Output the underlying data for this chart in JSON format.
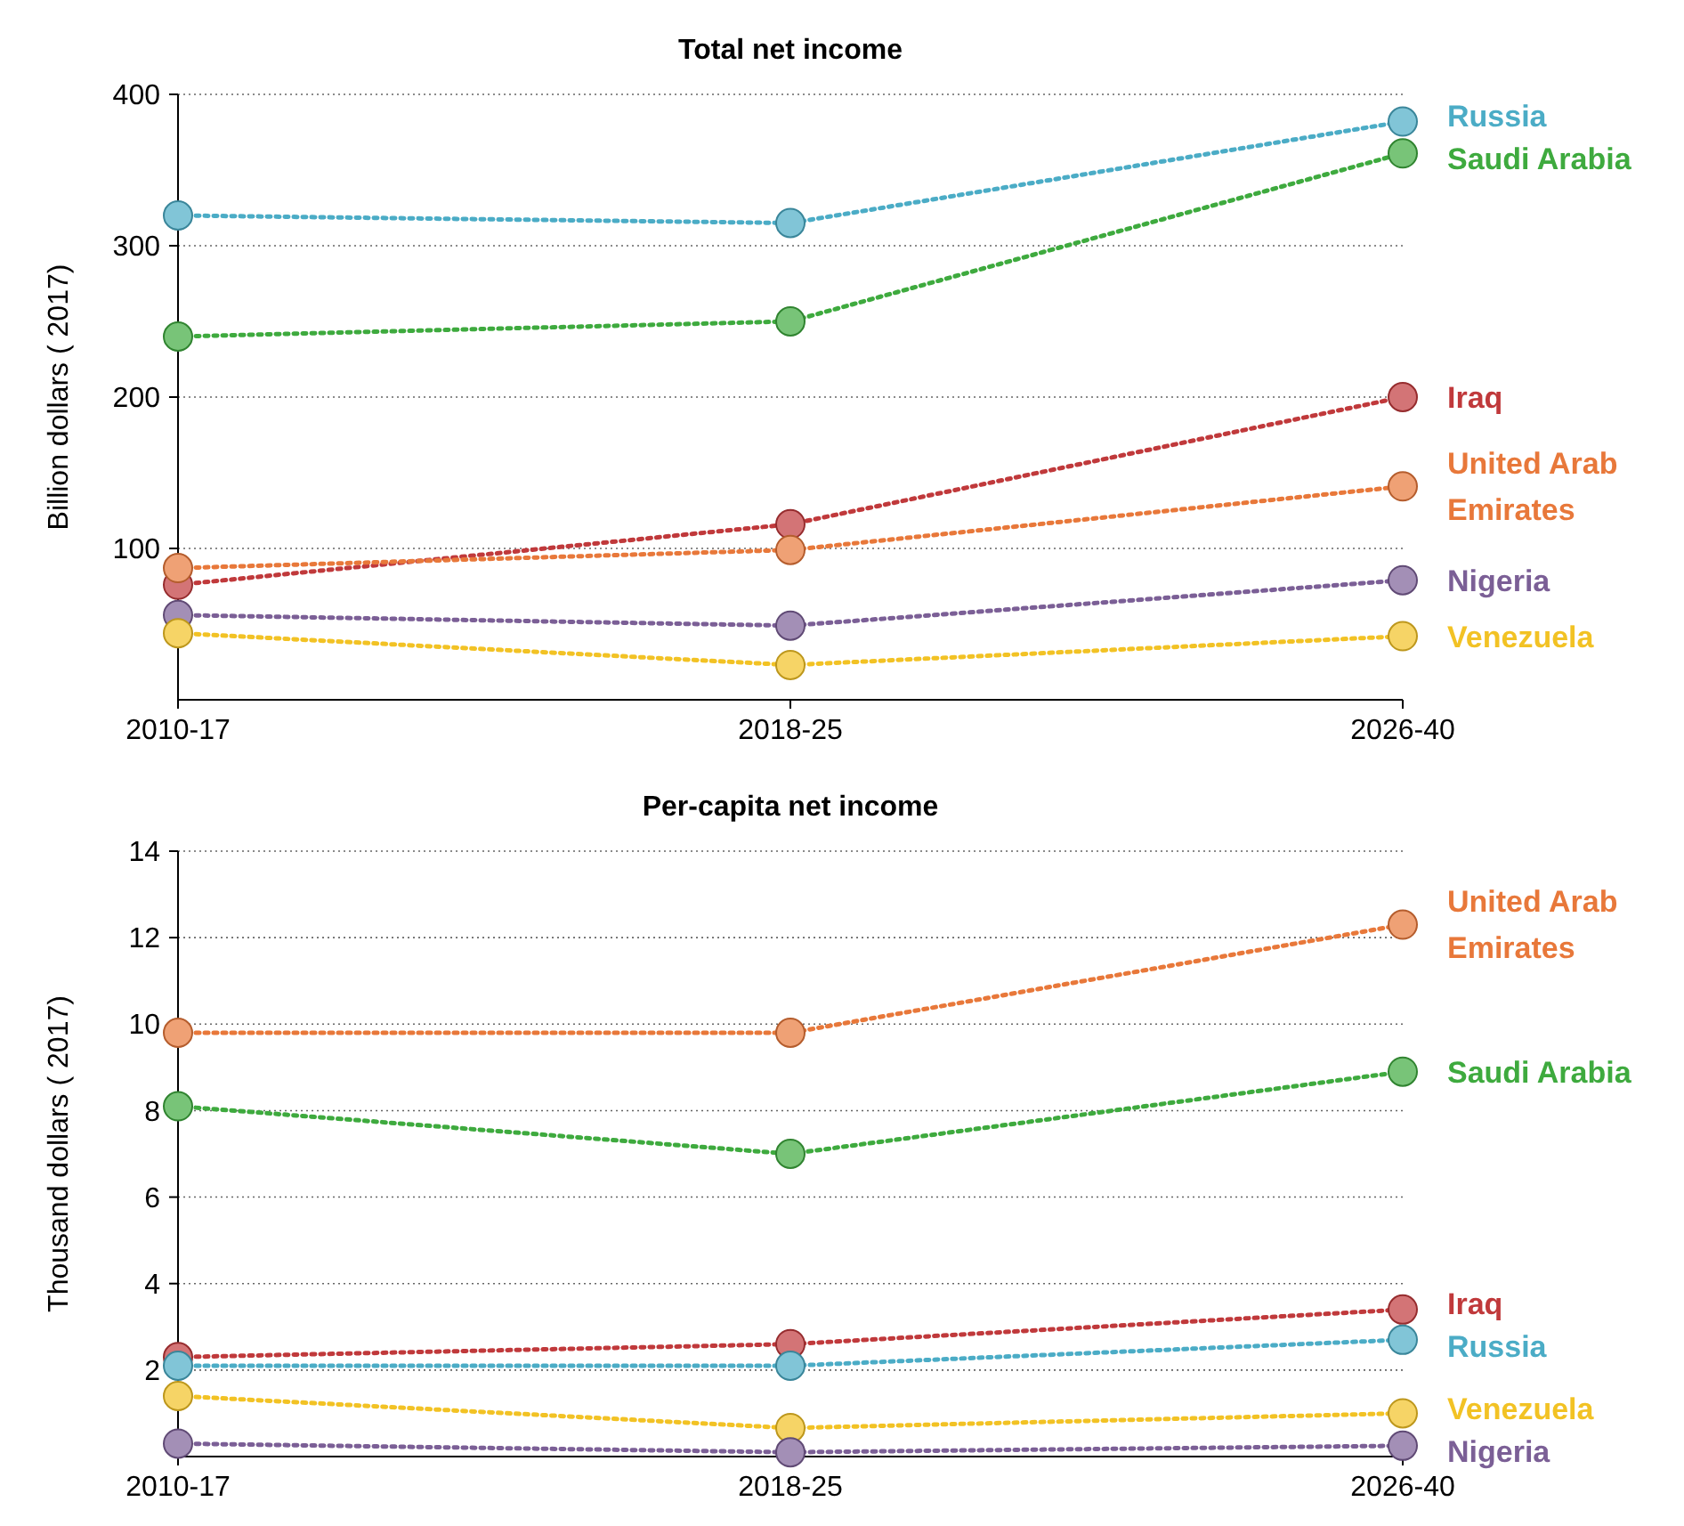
{
  "chart_data": [
    {
      "type": "line",
      "title": "Total net income",
      "ylabel": "Billion dollars ( 2017)",
      "categories": [
        "2010-17",
        "2018-25",
        "2026-40"
      ],
      "ylim": [
        0,
        400
      ],
      "yticks": [
        100,
        200,
        300,
        400
      ],
      "grid": "y",
      "marker": "circle",
      "line_style": "dotted",
      "series": [
        {
          "name": "Russia",
          "color": "#4bacc6",
          "values": [
            320,
            315,
            382
          ]
        },
        {
          "name": "Saudi Arabia",
          "color": "#3eaa3e",
          "values": [
            240,
            250,
            361
          ]
        },
        {
          "name": "Iraq",
          "color": "#c0393b",
          "values": [
            76,
            116,
            200
          ]
        },
        {
          "name": "United Arab Emirates",
          "color": "#e8783a",
          "values": [
            87,
            99,
            141
          ]
        },
        {
          "name": "Nigeria",
          "color": "#7b5f96",
          "values": [
            56,
            49,
            79
          ]
        },
        {
          "name": "Venezuela",
          "color": "#f2c224",
          "values": [
            44,
            23,
            42
          ]
        }
      ]
    },
    {
      "type": "line",
      "title": "Per-capita net income",
      "ylabel": "Thousand dollars ( 2017)",
      "categories": [
        "2010-17",
        "2018-25",
        "2026-40"
      ],
      "ylim": [
        0,
        14
      ],
      "yticks": [
        2,
        4,
        6,
        8,
        10,
        12,
        14
      ],
      "grid": "y",
      "marker": "circle",
      "line_style": "dotted",
      "series": [
        {
          "name": "United Arab Emirates",
          "color": "#e8783a",
          "values": [
            9.8,
            9.8,
            12.3
          ]
        },
        {
          "name": "Saudi Arabia",
          "color": "#3eaa3e",
          "values": [
            8.1,
            7.0,
            8.9
          ]
        },
        {
          "name": "Iraq",
          "color": "#c0393b",
          "values": [
            2.3,
            2.6,
            3.4
          ]
        },
        {
          "name": "Russia",
          "color": "#4bacc6",
          "values": [
            2.1,
            2.1,
            2.7
          ]
        },
        {
          "name": "Venezuela",
          "color": "#f2c224",
          "values": [
            1.4,
            0.66,
            1.0
          ]
        },
        {
          "name": "Nigeria",
          "color": "#7b5f96",
          "values": [
            0.3,
            0.1,
            0.25
          ]
        }
      ]
    }
  ]
}
